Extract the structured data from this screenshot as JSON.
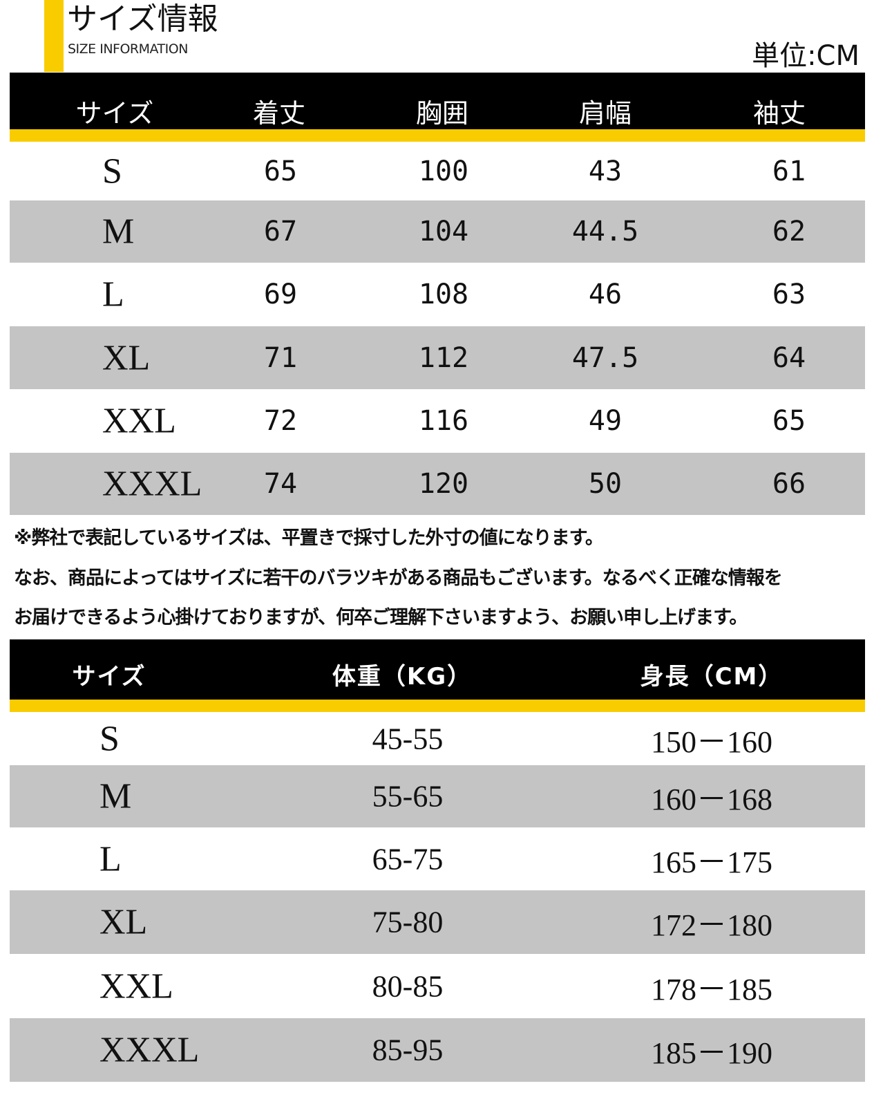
{
  "header": {
    "title": "サイズ情報",
    "subtitle": "SIZE INFORMATION",
    "unit": "単位:CM"
  },
  "colors": {
    "accent": "#f9cc00",
    "header_bg": "#000000",
    "row_alt": "#c4c4c4"
  },
  "table1": {
    "columns": [
      "サイズ",
      "着丈",
      "胸囲",
      "肩幅",
      "袖丈"
    ],
    "rows": [
      [
        "S",
        "65",
        "100",
        "43",
        "61"
      ],
      [
        "M",
        "67",
        "104",
        "44.5",
        "62"
      ],
      [
        "L",
        "69",
        "108",
        "46",
        "63"
      ],
      [
        "XL",
        "71",
        "112",
        "47.5",
        "64"
      ],
      [
        "XXL",
        "72",
        "116",
        "49",
        "65"
      ],
      [
        "XXXL",
        "74",
        "120",
        "50",
        "66"
      ]
    ]
  },
  "notes": [
    "※弊社で表記しているサイズは、平置きで採寸した外寸の値になります。",
    "なお、商品によってはサイズに若干のバラツキがある商品もございます。なるべく正確な情報を",
    "お届けできるよう心掛けておりますが、何卒ご理解下さいますよう、お願い申し上げます。"
  ],
  "table2": {
    "columns": [
      "サイズ",
      "体重（KG）",
      "身長（CM）"
    ],
    "rows": [
      [
        "S",
        "45-55",
        "150－160"
      ],
      [
        "M",
        "55-65",
        "160－168"
      ],
      [
        "L",
        "65-75",
        "165－175"
      ],
      [
        "XL",
        "75-80",
        "172－180"
      ],
      [
        "XXL",
        "80-85",
        "178－185"
      ],
      [
        "XXXL",
        "85-95",
        "185－190"
      ]
    ]
  }
}
